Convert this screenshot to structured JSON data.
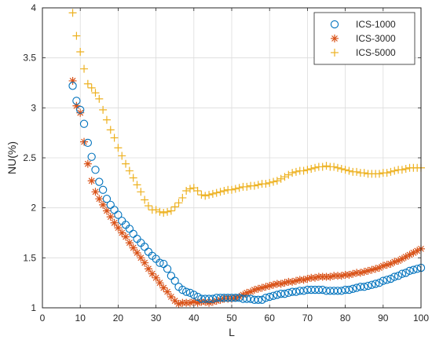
{
  "chart_data": {
    "type": "scatter",
    "xlabel": "L",
    "ylabel": "NU(%)",
    "xlim": [
      0,
      100
    ],
    "ylim": [
      1,
      4
    ],
    "xticks": [
      0,
      10,
      20,
      30,
      40,
      50,
      60,
      70,
      80,
      90,
      100
    ],
    "yticks": [
      1,
      1.5,
      2,
      2.5,
      3,
      3.5,
      4
    ],
    "xtick_labels": [
      "0",
      "10",
      "20",
      "30",
      "40",
      "50",
      "60",
      "70",
      "80",
      "90",
      "100"
    ],
    "ytick_labels": [
      "1",
      "1.5",
      "2",
      "2.5",
      "3",
      "3.5",
      "4"
    ],
    "grid": true,
    "legend_position": "top-right",
    "x": [
      8,
      9,
      10,
      11,
      12,
      13,
      14,
      15,
      16,
      17,
      18,
      19,
      20,
      21,
      22,
      23,
      24,
      25,
      26,
      27,
      28,
      29,
      30,
      31,
      32,
      33,
      34,
      35,
      36,
      37,
      38,
      39,
      40,
      41,
      42,
      43,
      44,
      45,
      46,
      47,
      48,
      49,
      50,
      51,
      52,
      53,
      54,
      55,
      56,
      57,
      58,
      59,
      60,
      61,
      62,
      63,
      64,
      65,
      66,
      67,
      68,
      69,
      70,
      71,
      72,
      73,
      74,
      75,
      76,
      77,
      78,
      79,
      80,
      81,
      82,
      83,
      84,
      85,
      86,
      87,
      88,
      89,
      90,
      91,
      92,
      93,
      94,
      95,
      96,
      97,
      98,
      99,
      100
    ],
    "series": [
      {
        "name": "ICS-1000",
        "marker": "circle",
        "color": "#0072BD",
        "values": [
          3.22,
          3.07,
          2.98,
          2.84,
          2.65,
          2.51,
          2.38,
          2.26,
          2.18,
          2.09,
          2.03,
          1.98,
          1.93,
          1.87,
          1.83,
          1.79,
          1.74,
          1.69,
          1.65,
          1.61,
          1.56,
          1.52,
          1.49,
          1.45,
          1.44,
          1.39,
          1.32,
          1.27,
          1.21,
          1.18,
          1.16,
          1.15,
          1.13,
          1.11,
          1.09,
          1.09,
          1.09,
          1.09,
          1.1,
          1.1,
          1.1,
          1.1,
          1.1,
          1.1,
          1.1,
          1.09,
          1.09,
          1.09,
          1.08,
          1.08,
          1.08,
          1.1,
          1.11,
          1.12,
          1.13,
          1.14,
          1.14,
          1.15,
          1.16,
          1.16,
          1.17,
          1.17,
          1.18,
          1.18,
          1.18,
          1.18,
          1.18,
          1.17,
          1.17,
          1.17,
          1.17,
          1.17,
          1.18,
          1.18,
          1.19,
          1.2,
          1.21,
          1.21,
          1.22,
          1.23,
          1.24,
          1.25,
          1.27,
          1.28,
          1.29,
          1.31,
          1.32,
          1.34,
          1.35,
          1.37,
          1.38,
          1.39,
          1.4
        ]
      },
      {
        "name": "ICS-3000",
        "marker": "asterisk",
        "color": "#D95319",
        "values": [
          3.27,
          3.02,
          2.95,
          2.66,
          2.44,
          2.27,
          2.16,
          2.09,
          2.03,
          1.97,
          1.91,
          1.85,
          1.8,
          1.75,
          1.71,
          1.65,
          1.6,
          1.55,
          1.5,
          1.45,
          1.39,
          1.34,
          1.3,
          1.25,
          1.2,
          1.16,
          1.11,
          1.07,
          1.04,
          1.05,
          1.05,
          1.05,
          1.06,
          1.05,
          1.06,
          1.06,
          1.05,
          1.06,
          1.07,
          1.08,
          1.09,
          1.09,
          1.09,
          1.1,
          1.11,
          1.13,
          1.15,
          1.16,
          1.18,
          1.19,
          1.2,
          1.21,
          1.22,
          1.23,
          1.24,
          1.24,
          1.25,
          1.26,
          1.26,
          1.27,
          1.28,
          1.28,
          1.29,
          1.3,
          1.3,
          1.31,
          1.31,
          1.31,
          1.31,
          1.32,
          1.32,
          1.32,
          1.33,
          1.33,
          1.34,
          1.35,
          1.35,
          1.36,
          1.37,
          1.38,
          1.39,
          1.4,
          1.42,
          1.43,
          1.44,
          1.46,
          1.47,
          1.49,
          1.51,
          1.53,
          1.55,
          1.57,
          1.59
        ]
      },
      {
        "name": "ICS-5000",
        "marker": "plus",
        "color": "#EDB120",
        "values": [
          3.95,
          3.72,
          3.56,
          3.39,
          3.24,
          3.2,
          3.15,
          3.09,
          2.98,
          2.88,
          2.78,
          2.7,
          2.6,
          2.52,
          2.44,
          2.37,
          2.3,
          2.23,
          2.16,
          2.08,
          2.02,
          1.98,
          1.98,
          1.96,
          1.95,
          1.96,
          1.97,
          2.01,
          2.05,
          2.1,
          2.17,
          2.19,
          2.2,
          2.17,
          2.13,
          2.12,
          2.13,
          2.14,
          2.15,
          2.16,
          2.17,
          2.18,
          2.18,
          2.19,
          2.2,
          2.21,
          2.21,
          2.22,
          2.22,
          2.23,
          2.24,
          2.24,
          2.25,
          2.26,
          2.27,
          2.29,
          2.31,
          2.33,
          2.35,
          2.36,
          2.37,
          2.37,
          2.38,
          2.39,
          2.4,
          2.41,
          2.41,
          2.42,
          2.41,
          2.41,
          2.4,
          2.39,
          2.38,
          2.37,
          2.36,
          2.36,
          2.35,
          2.35,
          2.34,
          2.34,
          2.34,
          2.34,
          2.35,
          2.35,
          2.36,
          2.37,
          2.38,
          2.38,
          2.39,
          2.4,
          2.4,
          2.4,
          2.4
        ]
      }
    ]
  }
}
